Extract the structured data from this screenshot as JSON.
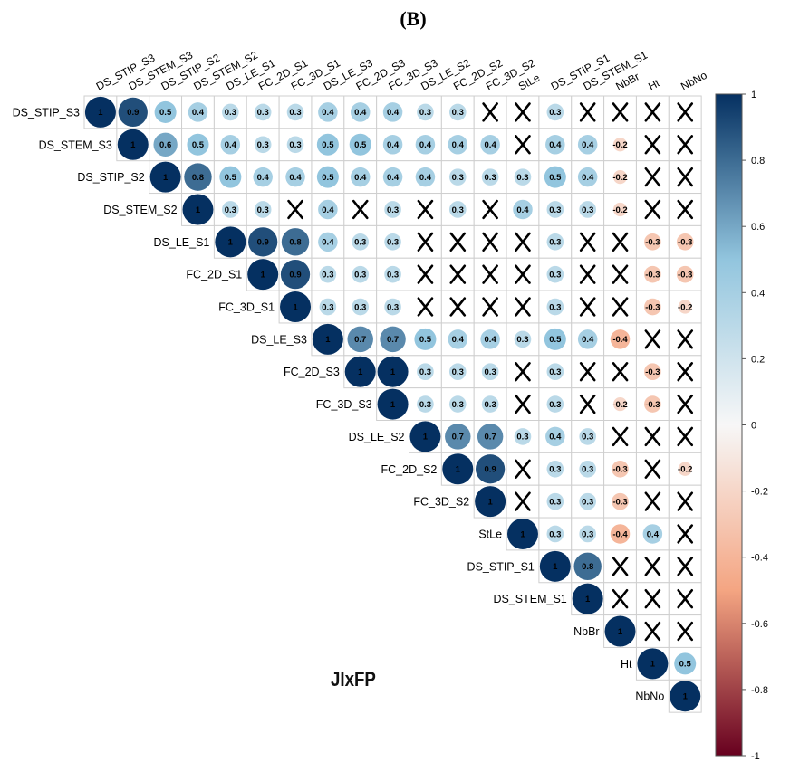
{
  "panel_label": "(B)",
  "chart_title": "JIxFP",
  "chart_data": {
    "type": "heatmap",
    "subtype": "correlation-upper-triangle",
    "variables": [
      "DS_STIP_S3",
      "DS_STEM_S3",
      "DS_STIP_S2",
      "DS_STEM_S2",
      "DS_LE_S1",
      "FC_2D_S1",
      "FC_3D_S1",
      "DS_LE_S3",
      "FC_2D_S3",
      "FC_3D_S3",
      "DS_LE_S2",
      "FC_2D_S2",
      "FC_3D_S2",
      "StLe",
      "DS_STIP_S1",
      "DS_STEM_S1",
      "NbBr",
      "Ht",
      "NbNo"
    ],
    "rows": [
      [
        1,
        0.9,
        0.5,
        0.4,
        0.3,
        0.3,
        0.3,
        0.4,
        0.4,
        0.4,
        0.3,
        0.3,
        "x",
        "x",
        0.3,
        "x",
        "x",
        "x",
        "x"
      ],
      [
        1,
        0.6,
        0.5,
        0.4,
        0.3,
        0.3,
        0.5,
        0.5,
        0.4,
        0.4,
        0.4,
        0.4,
        "x",
        0.4,
        0.4,
        -0.2,
        "x",
        "x"
      ],
      [
        1,
        0.8,
        0.5,
        0.4,
        0.4,
        0.5,
        0.4,
        0.4,
        0.4,
        0.3,
        0.3,
        0.3,
        0.5,
        0.4,
        -0.2,
        "x",
        "x"
      ],
      [
        1,
        0.3,
        0.3,
        "x",
        0.4,
        "x",
        0.3,
        "x",
        0.3,
        "x",
        0.4,
        0.3,
        0.3,
        -0.2,
        "x",
        "x"
      ],
      [
        1,
        0.9,
        0.8,
        0.4,
        0.3,
        0.3,
        "x",
        "x",
        "x",
        "x",
        0.3,
        "x",
        "x",
        -0.3,
        -0.3
      ],
      [
        1,
        0.9,
        0.3,
        0.3,
        0.3,
        "x",
        "x",
        "x",
        "x",
        0.3,
        "x",
        "x",
        -0.3,
        -0.3
      ],
      [
        1,
        0.3,
        0.3,
        0.3,
        "x",
        "x",
        "x",
        "x",
        0.3,
        "x",
        "x",
        -0.3,
        -0.2
      ],
      [
        1,
        0.7,
        0.7,
        0.5,
        0.4,
        0.4,
        0.3,
        0.5,
        0.4,
        -0.4,
        "x",
        "x"
      ],
      [
        1,
        1,
        0.3,
        0.3,
        0.3,
        "x",
        0.3,
        "x",
        "x",
        -0.3,
        "x"
      ],
      [
        1,
        0.3,
        0.3,
        0.3,
        "x",
        0.3,
        "x",
        -0.2,
        -0.3,
        "x"
      ],
      [
        1,
        0.7,
        0.7,
        0.3,
        0.4,
        0.3,
        "x",
        "x",
        "x"
      ],
      [
        1,
        0.9,
        "x",
        0.3,
        0.3,
        -0.3,
        "x",
        -0.2
      ],
      [
        1,
        "x",
        0.3,
        0.3,
        -0.3,
        "x",
        "x"
      ],
      [
        1,
        0.3,
        0.3,
        -0.4,
        0.4,
        "x"
      ],
      [
        1,
        0.8,
        "x",
        "x",
        "x"
      ],
      [
        1,
        "x",
        "x",
        "x"
      ],
      [
        1,
        "x",
        "x"
      ],
      [
        1,
        0.5
      ],
      [
        1
      ]
    ],
    "colorbar": {
      "range": [
        -1,
        1
      ],
      "ticks": [
        "1",
        "0.8",
        "0.6",
        "0.4",
        "0.2",
        "0",
        "-0.2",
        "-0.4",
        "-0.6",
        "-0.8",
        "-1"
      ],
      "colors": {
        "negative": "#67001f",
        "mid_negative": "#f4a582",
        "zero": "#f7f7f7",
        "mid_positive": "#92c5de",
        "positive": "#053061"
      }
    }
  }
}
